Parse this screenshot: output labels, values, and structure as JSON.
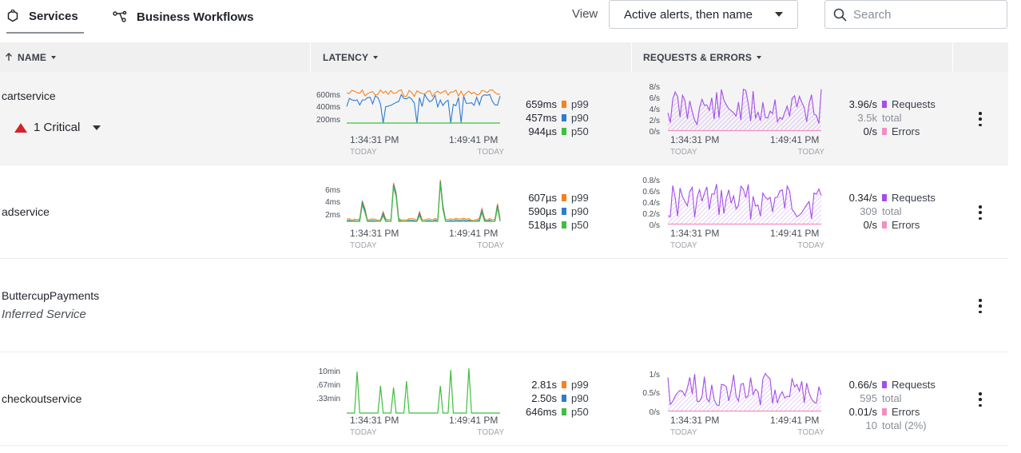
{
  "tabs": [
    {
      "label": "Services",
      "icon": "services-hexagon-icon",
      "active": true
    },
    {
      "label": "Business Workflows",
      "icon": "workflow-icon",
      "active": false
    }
  ],
  "view": {
    "label": "View",
    "selected": "Active alerts, then name"
  },
  "search": {
    "placeholder": "Search",
    "value": ""
  },
  "columns": {
    "name": "NAME",
    "latency": "LATENCY",
    "requests": "REQUESTS & ERRORS",
    "sort_icon": "sort-arrow-up-icon"
  },
  "colors": {
    "p99": "#f5821f",
    "p90": "#2f7ccf",
    "p50": "#3fbf3f",
    "requests": "#a54ee8",
    "errors": "#f28ec2",
    "critical": "#d1232a"
  },
  "time_axis": {
    "start": "1:34:31 PM",
    "end": "1:49:41 PM",
    "sub": "TODAY"
  },
  "services": [
    {
      "name": "cartservice",
      "alert": {
        "count_label": "1 Critical"
      },
      "latency": {
        "y_ticks": [
          "600ms",
          "400ms",
          "200ms"
        ],
        "p99": "659ms",
        "p90": "457ms",
        "p50": "944µs",
        "p99_label": "p99",
        "p90_label": "p90",
        "p50_label": "p50"
      },
      "requests": {
        "y_ticks": [
          "8/s",
          "6/s",
          "4/s",
          "2/s",
          "0/s"
        ],
        "rate": "3.96/s",
        "rate_label": "Requests",
        "total": "3.5k",
        "total_label": "total",
        "errors": "0/s",
        "errors_label": "Errors"
      }
    },
    {
      "name": "adservice",
      "latency": {
        "y_ticks": [
          "6ms",
          "4ms",
          "2ms"
        ],
        "p99": "607µs",
        "p90": "590µs",
        "p50": "518µs",
        "p99_label": "p99",
        "p90_label": "p90",
        "p50_label": "p50"
      },
      "requests": {
        "y_ticks": [
          "0.8/s",
          "0.6/s",
          "0.4/s",
          "0.2/s",
          "0/s"
        ],
        "rate": "0.34/s",
        "rate_label": "Requests",
        "total": "309",
        "total_label": "total",
        "errors": "0/s",
        "errors_label": "Errors"
      }
    },
    {
      "name": "ButtercupPayments",
      "subtitle": "Inferred Service"
    },
    {
      "name": "checkoutservice",
      "latency": {
        "y_ticks": [
          "10min",
          ".67min",
          ".33min"
        ],
        "p99": "2.81s",
        "p90": "2.50s",
        "p50": "646ms",
        "p99_label": "p99",
        "p90_label": "p90",
        "p50_label": "p50"
      },
      "requests": {
        "y_ticks": [
          "1/s",
          "0.5/s",
          "0/s"
        ],
        "rate": "0.66/s",
        "rate_label": "Requests",
        "total": "595",
        "total_label": "total",
        "errors": "0.01/s",
        "errors_label": "Errors",
        "errors_total": "10",
        "errors_total_label": "total (2%)"
      }
    }
  ]
}
